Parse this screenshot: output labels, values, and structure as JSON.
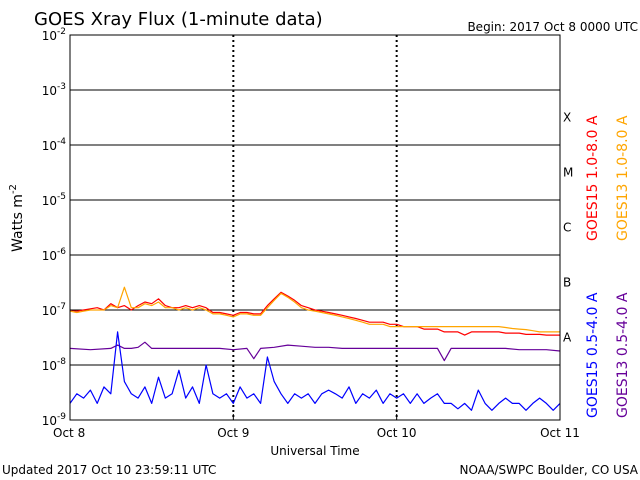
{
  "header": {
    "title": "GOES Xray Flux (1-minute data)",
    "begin_label": "Begin:  2017 Oct 8 0000 UTC"
  },
  "footer": {
    "updated": "Updated 2017 Oct 10 23:59:11 UTC",
    "credit": "NOAA/SWPC Boulder, CO USA"
  },
  "legend": {
    "goes15_long": "GOES15 1.0-8.0 A",
    "goes13_long": "GOES13 1.0-8.0 A",
    "goes15_short": "GOES15 0.5-4.0 A",
    "goes13_short": "GOES13 0.5-4.0 A"
  },
  "colors": {
    "goes15_long": "#ff0000",
    "goes13_long": "#ffa500",
    "goes15_short": "#0000ff",
    "goes13_short": "#660099",
    "grid": "#000000"
  },
  "chart_data": {
    "type": "line",
    "title": "GOES Xray Flux (1-minute data)",
    "xlabel": "Universal Time",
    "ylabel": "Watts m",
    "ylabel_exponent": "-2",
    "yscale": "log",
    "ylim": [
      1e-09,
      0.01
    ],
    "xlim": [
      0,
      72
    ],
    "x_units": "hours since 2017 Oct 8 0000 UTC",
    "x_ticks": [
      {
        "value": 0,
        "label": "Oct 8"
      },
      {
        "value": 24,
        "label": "Oct 9"
      },
      {
        "value": 48,
        "label": "Oct 10"
      },
      {
        "value": 72,
        "label": "Oct 11"
      }
    ],
    "y_ticks": [
      {
        "value": 1e-09,
        "base": "10",
        "exp": "-9"
      },
      {
        "value": 1e-08,
        "base": "10",
        "exp": "-8"
      },
      {
        "value": 1e-07,
        "base": "10",
        "exp": "-7"
      },
      {
        "value": 1e-06,
        "base": "10",
        "exp": "-6"
      },
      {
        "value": 1e-05,
        "base": "10",
        "exp": "-5"
      },
      {
        "value": 0.0001,
        "base": "10",
        "exp": "-4"
      },
      {
        "value": 0.001,
        "base": "10",
        "exp": "-3"
      },
      {
        "value": 0.01,
        "base": "10",
        "exp": "-2"
      }
    ],
    "flare_classes": [
      {
        "label": "A",
        "value": 3.16e-08
      },
      {
        "label": "B",
        "value": 3.16e-07
      },
      {
        "label": "C",
        "value": 3.16e-06
      },
      {
        "label": "M",
        "value": 3.16e-05
      },
      {
        "label": "X",
        "value": 0.000316
      }
    ],
    "grid": true,
    "series": [
      {
        "name": "GOES15 1.0-8.0 A",
        "color": "#ff0000",
        "x": [
          0,
          1,
          2,
          3,
          4,
          5,
          6,
          7,
          8,
          9,
          10,
          11,
          12,
          13,
          14,
          15,
          16,
          17,
          18,
          19,
          20,
          21,
          22,
          23,
          24,
          25,
          26,
          27,
          28,
          29,
          30,
          31,
          32,
          33,
          34,
          35,
          36,
          37,
          38,
          39,
          40,
          41,
          42,
          43,
          44,
          45,
          46,
          47,
          48,
          49,
          50,
          51,
          52,
          53,
          54,
          55,
          56,
          57,
          58,
          59,
          60,
          61,
          62,
          63,
          64,
          65,
          66,
          67,
          68,
          69,
          70,
          71,
          72
        ],
        "values": [
          1e-07,
          9.5e-08,
          1e-07,
          1.05e-07,
          1.1e-07,
          1e-07,
          1.3e-07,
          1.1e-07,
          1.2e-07,
          1e-07,
          1.2e-07,
          1.4e-07,
          1.3e-07,
          1.6e-07,
          1.2e-07,
          1.1e-07,
          1.1e-07,
          1.2e-07,
          1.1e-07,
          1.2e-07,
          1.1e-07,
          9e-08,
          9e-08,
          8.5e-08,
          8e-08,
          9e-08,
          9e-08,
          8.5e-08,
          8.5e-08,
          1.2e-07,
          1.6e-07,
          2.1e-07,
          1.8e-07,
          1.5e-07,
          1.2e-07,
          1.1e-07,
          1e-07,
          9.5e-08,
          9e-08,
          8.5e-08,
          8e-08,
          7.5e-08,
          7e-08,
          6.5e-08,
          6e-08,
          6e-08,
          6e-08,
          5.5e-08,
          5.5e-08,
          5e-08,
          5e-08,
          5e-08,
          4.5e-08,
          4.5e-08,
          4.5e-08,
          4e-08,
          4e-08,
          4e-08,
          3.5e-08,
          4e-08,
          4e-08,
          4e-08,
          4e-08,
          4e-08,
          3.8e-08,
          3.8e-08,
          3.8e-08,
          3.6e-08,
          3.6e-08,
          3.6e-08,
          3.5e-08,
          3.5e-08,
          3.5e-08
        ]
      },
      {
        "name": "GOES13 1.0-8.0 A",
        "color": "#ffa500",
        "x": [
          0,
          1,
          2,
          3,
          4,
          5,
          6,
          7,
          8,
          9,
          10,
          11,
          12,
          13,
          14,
          15,
          16,
          17,
          18,
          19,
          20,
          21,
          22,
          23,
          24,
          25,
          26,
          27,
          28,
          29,
          30,
          31,
          32,
          33,
          34,
          35,
          36,
          37,
          38,
          39,
          40,
          41,
          42,
          43,
          44,
          45,
          46,
          47,
          48,
          49,
          50,
          51,
          52,
          53,
          54,
          55,
          56,
          57,
          58,
          59,
          60,
          61,
          62,
          63,
          64,
          65,
          66,
          67,
          68,
          69,
          70,
          71,
          72
        ],
        "values": [
          9.5e-08,
          9e-08,
          9.5e-08,
          1e-07,
          1e-07,
          1e-07,
          1.2e-07,
          1.1e-07,
          2.6e-07,
          1.1e-07,
          1.1e-07,
          1.3e-07,
          1.2e-07,
          1.4e-07,
          1.1e-07,
          1.1e-07,
          1e-07,
          1.1e-07,
          1e-07,
          1.1e-07,
          1e-07,
          8.5e-08,
          8.5e-08,
          8e-08,
          7.5e-08,
          8.5e-08,
          8.5e-08,
          8e-08,
          8e-08,
          1.1e-07,
          1.5e-07,
          2e-07,
          1.7e-07,
          1.4e-07,
          1.1e-07,
          1e-07,
          9.5e-08,
          9e-08,
          8.5e-08,
          8e-08,
          7.5e-08,
          7e-08,
          6.5e-08,
          6e-08,
          5.5e-08,
          5.5e-08,
          5.5e-08,
          5e-08,
          5e-08,
          5e-08,
          5e-08,
          5e-08,
          5e-08,
          5e-08,
          5e-08,
          5e-08,
          5e-08,
          5e-08,
          5e-08,
          5e-08,
          5e-08,
          5e-08,
          5e-08,
          5e-08,
          4.8e-08,
          4.6e-08,
          4.5e-08,
          4.4e-08,
          4.2e-08,
          4e-08,
          4e-08,
          4e-08,
          4e-08
        ]
      },
      {
        "name": "GOES13 0.5-4.0 A",
        "color": "#660099",
        "x": [
          0,
          3,
          6,
          7,
          8,
          9,
          10,
          11,
          12,
          14,
          18,
          20,
          22,
          24,
          26,
          27,
          28,
          30,
          32,
          34,
          36,
          38,
          40,
          42,
          44,
          46,
          48,
          50,
          52,
          54,
          55,
          56,
          58,
          60,
          62,
          64,
          66,
          68,
          70,
          72
        ],
        "values": [
          2e-08,
          1.9e-08,
          2e-08,
          2.3e-08,
          2e-08,
          2e-08,
          2.1e-08,
          2.6e-08,
          2e-08,
          2e-08,
          2e-08,
          2e-08,
          2e-08,
          1.9e-08,
          2e-08,
          1.3e-08,
          2e-08,
          2.1e-08,
          2.3e-08,
          2.2e-08,
          2.1e-08,
          2.1e-08,
          2e-08,
          2e-08,
          2e-08,
          2e-08,
          2e-08,
          2e-08,
          2e-08,
          2e-08,
          1.2e-08,
          2e-08,
          2e-08,
          2e-08,
          2e-08,
          2e-08,
          1.9e-08,
          1.9e-08,
          1.9e-08,
          1.8e-08
        ]
      },
      {
        "name": "GOES15 0.5-4.0 A",
        "color": "#0000ff",
        "x": [
          0,
          1,
          2,
          3,
          4,
          5,
          6,
          7,
          8,
          9,
          10,
          11,
          12,
          13,
          14,
          15,
          16,
          17,
          18,
          19,
          20,
          21,
          22,
          23,
          24,
          25,
          26,
          27,
          28,
          29,
          30,
          31,
          32,
          33,
          34,
          35,
          36,
          37,
          38,
          39,
          40,
          41,
          42,
          43,
          44,
          45,
          46,
          47,
          48,
          49,
          50,
          51,
          52,
          53,
          54,
          55,
          56,
          57,
          58,
          59,
          60,
          61,
          62,
          63,
          64,
          65,
          66,
          67,
          68,
          69,
          70,
          71,
          72
        ],
        "values": [
          2e-09,
          3e-09,
          2.5e-09,
          3.5e-09,
          2e-09,
          4e-09,
          3e-09,
          4e-08,
          5e-09,
          3e-09,
          2.5e-09,
          4e-09,
          2e-09,
          6e-09,
          2.5e-09,
          3e-09,
          8e-09,
          2.5e-09,
          4e-09,
          2e-09,
          1e-08,
          3e-09,
          2.5e-09,
          3e-09,
          2e-09,
          4e-09,
          2.5e-09,
          3e-09,
          2e-09,
          1.4e-08,
          5e-09,
          3e-09,
          2e-09,
          3e-09,
          2.5e-09,
          3e-09,
          2e-09,
          3e-09,
          3.5e-09,
          3e-09,
          2.5e-09,
          4e-09,
          2e-09,
          3e-09,
          2.5e-09,
          3.5e-09,
          2e-09,
          3e-09,
          2.5e-09,
          3e-09,
          2e-09,
          3e-09,
          2e-09,
          2.5e-09,
          3e-09,
          2e-09,
          2e-09,
          1.6e-09,
          2e-09,
          1.5e-09,
          3.5e-09,
          2e-09,
          1.5e-09,
          2e-09,
          2.5e-09,
          2e-09,
          2e-09,
          1.5e-09,
          2e-09,
          2.5e-09,
          2e-09,
          1.5e-09,
          2e-09
        ]
      }
    ]
  }
}
